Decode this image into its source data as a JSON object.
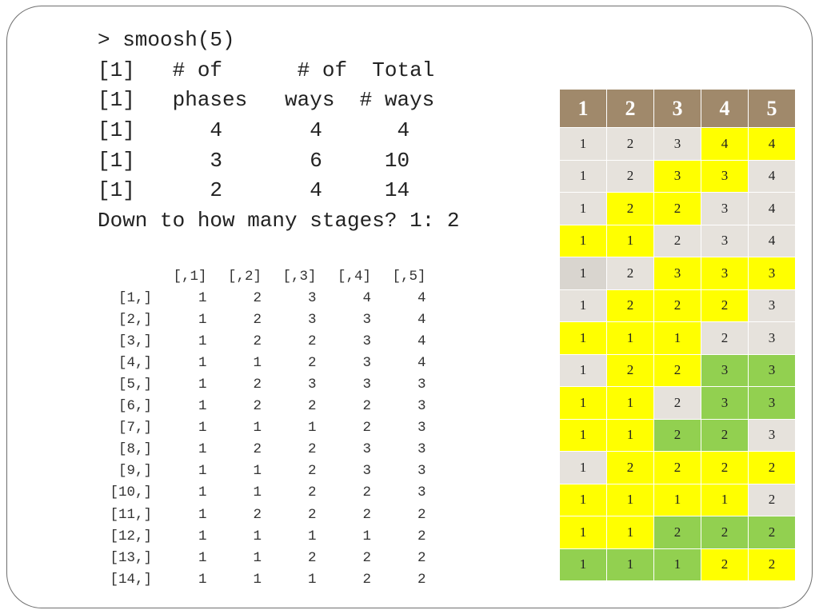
{
  "console": {
    "lines": [
      "> smoosh(5)",
      "[1]   # of      # of  Total",
      "[1]   phases   ways  # ways",
      "[1]      4       4      4",
      "[1]      3       6     10",
      "[1]      2       4     14",
      "Down to how many stages? 1: 2"
    ]
  },
  "matrix": {
    "column_headers": [
      "[,1]",
      "[,2]",
      "[,3]",
      "[,4]",
      "[,5]"
    ],
    "rows": [
      {
        "label": "[1,]",
        "values": [
          "1",
          "2",
          "3",
          "4",
          "4"
        ]
      },
      {
        "label": "[2,]",
        "values": [
          "1",
          "2",
          "3",
          "3",
          "4"
        ]
      },
      {
        "label": "[3,]",
        "values": [
          "1",
          "2",
          "2",
          "3",
          "4"
        ]
      },
      {
        "label": "[4,]",
        "values": [
          "1",
          "1",
          "2",
          "3",
          "4"
        ]
      },
      {
        "label": "[5,]",
        "values": [
          "1",
          "2",
          "3",
          "3",
          "3"
        ]
      },
      {
        "label": "[6,]",
        "values": [
          "1",
          "2",
          "2",
          "2",
          "3"
        ]
      },
      {
        "label": "[7,]",
        "values": [
          "1",
          "1",
          "1",
          "2",
          "3"
        ]
      },
      {
        "label": "[8,]",
        "values": [
          "1",
          "2",
          "2",
          "3",
          "3"
        ]
      },
      {
        "label": "[9,]",
        "values": [
          "1",
          "1",
          "2",
          "3",
          "3"
        ]
      },
      {
        "label": "[10,]",
        "values": [
          "1",
          "1",
          "2",
          "2",
          "3"
        ]
      },
      {
        "label": "[11,]",
        "values": [
          "1",
          "2",
          "2",
          "2",
          "2"
        ]
      },
      {
        "label": "[12,]",
        "values": [
          "1",
          "1",
          "1",
          "1",
          "2"
        ]
      },
      {
        "label": "[13,]",
        "values": [
          "1",
          "1",
          "2",
          "2",
          "2"
        ]
      },
      {
        "label": "[14,]",
        "values": [
          "1",
          "1",
          "1",
          "2",
          "2"
        ]
      }
    ]
  },
  "grid": {
    "headers": [
      "1",
      "2",
      "3",
      "4",
      "5"
    ],
    "colors": {
      "header": "#a0896b",
      "gray": "#e6e2dc",
      "gray2": "#d9d5cf",
      "yellow": "#ffff00",
      "green": "#92d050"
    },
    "rows": [
      {
        "values": [
          "1",
          "2",
          "3",
          "4",
          "4"
        ],
        "fills": [
          "gray",
          "gray",
          "gray",
          "yellow",
          "yellow"
        ]
      },
      {
        "values": [
          "1",
          "2",
          "3",
          "3",
          "4"
        ],
        "fills": [
          "gray",
          "gray",
          "yellow",
          "yellow",
          "gray"
        ]
      },
      {
        "values": [
          "1",
          "2",
          "2",
          "3",
          "4"
        ],
        "fills": [
          "gray",
          "yellow",
          "yellow",
          "gray",
          "gray"
        ]
      },
      {
        "values": [
          "1",
          "1",
          "2",
          "3",
          "4"
        ],
        "fills": [
          "yellow",
          "yellow",
          "gray",
          "gray",
          "gray"
        ]
      },
      {
        "values": [
          "1",
          "2",
          "3",
          "3",
          "3"
        ],
        "fills": [
          "gray2",
          "gray",
          "yellow",
          "yellow",
          "yellow"
        ]
      },
      {
        "values": [
          "1",
          "2",
          "2",
          "2",
          "3"
        ],
        "fills": [
          "gray",
          "yellow",
          "yellow",
          "yellow",
          "gray"
        ]
      },
      {
        "values": [
          "1",
          "1",
          "1",
          "2",
          "3"
        ],
        "fills": [
          "yellow",
          "yellow",
          "yellow",
          "gray",
          "gray"
        ]
      },
      {
        "values": [
          "1",
          "2",
          "2",
          "3",
          "3"
        ],
        "fills": [
          "gray",
          "yellow",
          "yellow",
          "green",
          "green"
        ]
      },
      {
        "values": [
          "1",
          "1",
          "2",
          "3",
          "3"
        ],
        "fills": [
          "yellow",
          "yellow",
          "gray",
          "green",
          "green"
        ]
      },
      {
        "values": [
          "1",
          "1",
          "2",
          "2",
          "3"
        ],
        "fills": [
          "yellow",
          "yellow",
          "green",
          "green",
          "gray"
        ]
      },
      {
        "values": [
          "1",
          "2",
          "2",
          "2",
          "2"
        ],
        "fills": [
          "gray",
          "yellow",
          "yellow",
          "yellow",
          "yellow"
        ]
      },
      {
        "values": [
          "1",
          "1",
          "1",
          "1",
          "2"
        ],
        "fills": [
          "yellow",
          "yellow",
          "yellow",
          "yellow",
          "gray"
        ]
      },
      {
        "values": [
          "1",
          "1",
          "2",
          "2",
          "2"
        ],
        "fills": [
          "yellow",
          "yellow",
          "green",
          "green",
          "green"
        ]
      },
      {
        "values": [
          "1",
          "1",
          "1",
          "2",
          "2"
        ],
        "fills": [
          "green",
          "green",
          "green",
          "yellow",
          "yellow"
        ]
      }
    ]
  }
}
